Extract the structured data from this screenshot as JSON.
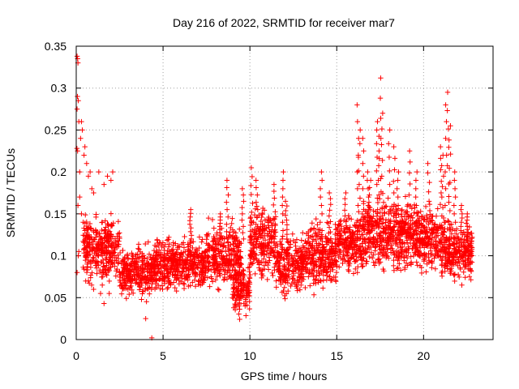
{
  "chart_data": {
    "type": "scatter",
    "title": "Day 216 of 2022, SRMTID for receiver mar7",
    "xlabel": "GPS time / hours",
    "ylabel": "SRMTID / TECUs",
    "xlim": [
      0,
      24
    ],
    "ylim": [
      0,
      0.35
    ],
    "xticks": [
      0,
      5,
      10,
      15,
      20
    ],
    "xtick_labels": [
      "0",
      "5",
      "10",
      "15",
      "20"
    ],
    "yticks": [
      0,
      0.05,
      0.1,
      0.15,
      0.2,
      0.25,
      0.3,
      0.35
    ],
    "ytick_labels": [
      "0",
      "0.05",
      "0.1",
      "0.15",
      "0.2",
      "0.25",
      "0.3",
      "0.35"
    ],
    "grid": true,
    "marker": "+",
    "series": [
      {
        "name": "SRMTID",
        "color": "#ff0000",
        "points": [
          [
            0.05,
            0.338
          ],
          [
            0.08,
            0.335
          ],
          [
            0.1,
            0.33
          ],
          [
            0.07,
            0.29
          ],
          [
            0.05,
            0.275
          ],
          [
            0.12,
            0.285
          ],
          [
            0.04,
            0.228
          ],
          [
            0.08,
            0.225
          ],
          [
            0.15,
            0.26
          ],
          [
            0.3,
            0.26
          ],
          [
            0.35,
            0.25
          ],
          [
            0.25,
            0.24
          ],
          [
            0.2,
            0.2
          ],
          [
            0.45,
            0.22
          ],
          [
            0.5,
            0.23
          ],
          [
            0.6,
            0.21
          ],
          [
            0.7,
            0.195
          ],
          [
            0.8,
            0.2
          ],
          [
            0.9,
            0.18
          ],
          [
            1.0,
            0.175
          ],
          [
            1.3,
            0.2
          ],
          [
            1.6,
            0.185
          ],
          [
            1.8,
            0.195
          ],
          [
            2.0,
            0.19
          ],
          [
            2.1,
            0.2
          ],
          [
            0.1,
            0.16
          ],
          [
            0.2,
            0.17
          ],
          [
            0.3,
            0.15
          ],
          [
            0.4,
            0.14
          ],
          [
            0.5,
            0.13
          ],
          [
            0.15,
            0.105
          ],
          [
            0.05,
            0.08
          ],
          [
            0.12,
            0.1
          ],
          [
            0.6,
            0.11
          ],
          [
            0.9,
            0.12
          ],
          [
            1.2,
            0.09
          ],
          [
            1.5,
            0.1
          ],
          [
            1.7,
            0.08
          ],
          [
            2.0,
            0.12
          ],
          [
            2.2,
            0.1
          ],
          [
            4.0,
            0.025
          ],
          [
            4.35,
            0.002
          ],
          [
            1.5,
            0.065
          ],
          [
            1.4,
            0.055
          ],
          [
            1.6,
            0.043
          ],
          [
            0.7,
            0.07
          ],
          [
            1.0,
            0.06
          ],
          [
            1.9,
            0.055
          ]
        ]
      }
    ],
    "bands": [
      {
        "x": [
          0.4,
          2.5
        ],
        "y": [
          0.06,
          0.16
        ]
      },
      {
        "x": [
          2.5,
          4.5
        ],
        "y": [
          0.04,
          0.12
        ]
      },
      {
        "x": [
          4.5,
          7.5
        ],
        "y": [
          0.05,
          0.13
        ]
      },
      {
        "x": [
          7.5,
          9.5
        ],
        "y": [
          0.05,
          0.15
        ]
      },
      {
        "x": [
          9.0,
          10.0
        ],
        "y": [
          0.02,
          0.1
        ]
      },
      {
        "x": [
          10.0,
          11.5
        ],
        "y": [
          0.06,
          0.17
        ]
      },
      {
        "x": [
          11.5,
          13.0
        ],
        "y": [
          0.04,
          0.14
        ]
      },
      {
        "x": [
          13.0,
          15.0
        ],
        "y": [
          0.05,
          0.15
        ]
      },
      {
        "x": [
          15.0,
          16.5
        ],
        "y": [
          0.07,
          0.16
        ]
      },
      {
        "x": [
          16.5,
          19.5
        ],
        "y": [
          0.07,
          0.18
        ]
      },
      {
        "x": [
          19.5,
          21.0
        ],
        "y": [
          0.07,
          0.17
        ]
      },
      {
        "x": [
          21.0,
          22.8
        ],
        "y": [
          0.06,
          0.15
        ]
      }
    ],
    "spikes": [
      {
        "x": 6.6,
        "y": 0.155
      },
      {
        "x": 8.3,
        "y": 0.15
      },
      {
        "x": 8.7,
        "y": 0.19
      },
      {
        "x": 9.6,
        "y": 0.18
      },
      {
        "x": 10.1,
        "y": 0.205
      },
      {
        "x": 10.4,
        "y": 0.19
      },
      {
        "x": 11.4,
        "y": 0.185
      },
      {
        "x": 11.9,
        "y": 0.2
      },
      {
        "x": 14.1,
        "y": 0.2
      },
      {
        "x": 14.6,
        "y": 0.175
      },
      {
        "x": 16.3,
        "y": 0.25
      },
      {
        "x": 16.2,
        "y": 0.28
      },
      {
        "x": 16.5,
        "y": 0.24
      },
      {
        "x": 16.8,
        "y": 0.2
      },
      {
        "x": 17.3,
        "y": 0.25
      },
      {
        "x": 17.4,
        "y": 0.26
      },
      {
        "x": 17.5,
        "y": 0.312
      },
      {
        "x": 17.6,
        "y": 0.27
      },
      {
        "x": 18.0,
        "y": 0.25
      },
      {
        "x": 18.3,
        "y": 0.23
      },
      {
        "x": 18.5,
        "y": 0.2
      },
      {
        "x": 19.2,
        "y": 0.225
      },
      {
        "x": 19.6,
        "y": 0.2
      },
      {
        "x": 20.3,
        "y": 0.21
      },
      {
        "x": 21.0,
        "y": 0.23
      },
      {
        "x": 21.1,
        "y": 0.22
      },
      {
        "x": 21.3,
        "y": 0.28
      },
      {
        "x": 21.4,
        "y": 0.295
      },
      {
        "x": 21.5,
        "y": 0.255
      },
      {
        "x": 21.8,
        "y": 0.2
      },
      {
        "x": 22.2,
        "y": 0.16
      },
      {
        "x": 22.5,
        "y": 0.15
      },
      {
        "x": 16.9,
        "y": 0.19
      },
      {
        "x": 15.5,
        "y": 0.175
      },
      {
        "x": 12.1,
        "y": 0.165
      }
    ]
  }
}
